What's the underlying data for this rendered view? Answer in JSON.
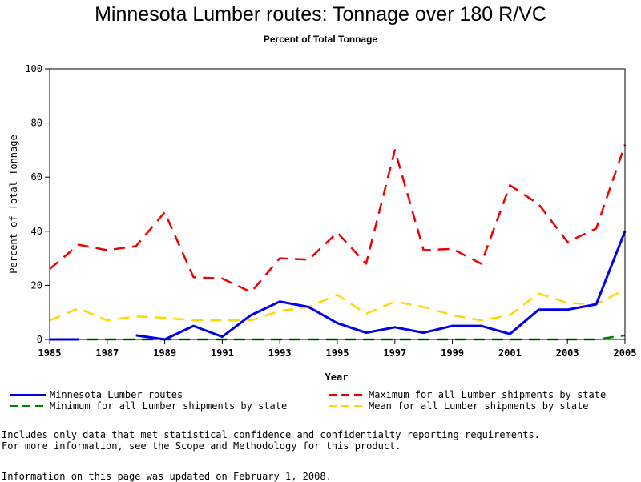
{
  "chart_data": {
    "type": "line",
    "title": "Minnesota Lumber routes: Tonnage over 180 R/VC",
    "subtitle": "Percent of Total Tonnage",
    "xlabel": "Year",
    "ylabel": "Percent of Total Tonnage",
    "xlim": [
      1985,
      2005
    ],
    "ylim": [
      0,
      100
    ],
    "x_ticks": [
      1985,
      1987,
      1989,
      1991,
      1993,
      1995,
      1997,
      1999,
      2001,
      2003,
      2005
    ],
    "y_ticks": [
      0,
      20,
      40,
      60,
      80,
      100
    ],
    "grid": false,
    "x": [
      1985,
      1986,
      1987,
      1988,
      1989,
      1990,
      1991,
      1992,
      1993,
      1994,
      1995,
      1996,
      1997,
      1998,
      1999,
      2000,
      2001,
      2002,
      2003,
      2004,
      2005
    ],
    "series": [
      {
        "name": "Minnesota Lumber routes",
        "color": "#0000ee",
        "style": "solid",
        "values": [
          0,
          0,
          null,
          1.5,
          0,
          5,
          1,
          9,
          14,
          12,
          6,
          2.5,
          4.5,
          2.5,
          5,
          5,
          2,
          11,
          11,
          13,
          40
        ]
      },
      {
        "name": "Maximum for all Lumber shipments by state",
        "color": "#ee0000",
        "style": "dashed",
        "values": [
          26,
          35,
          33,
          34.5,
          47,
          23,
          22.5,
          17.5,
          30,
          29.5,
          39.5,
          28,
          70,
          33,
          33.5,
          28,
          57,
          50,
          36,
          41,
          72
        ]
      },
      {
        "name": "Minimum for all Lumber shipments by state",
        "color": "#008000",
        "style": "dashed",
        "values": [
          0,
          0,
          0,
          0,
          0,
          0,
          0,
          0,
          0,
          0,
          0,
          0,
          0,
          0,
          0,
          0,
          0,
          0,
          0,
          0,
          1.5
        ]
      },
      {
        "name": "Mean for all Lumber shipments by state",
        "color": "#ffd700",
        "style": "dashed",
        "values": [
          7,
          11.5,
          7,
          8.5,
          8,
          7,
          7,
          7,
          10.5,
          12,
          16.5,
          9.5,
          14,
          12,
          9,
          7,
          9,
          17,
          13.5,
          13,
          18.5
        ]
      }
    ]
  },
  "legend": [
    {
      "label": "Minnesota Lumber routes",
      "color": "#0000ee",
      "style": "solid"
    },
    {
      "label": "Maximum for all Lumber shipments by state",
      "color": "#ee0000",
      "style": "dashed"
    },
    {
      "label": "Minimum for all Lumber shipments by state",
      "color": "#008000",
      "style": "dashed"
    },
    {
      "label": "Mean for all Lumber shipments by state",
      "color": "#ffd700",
      "style": "dashed"
    }
  ],
  "notes": {
    "line1": "Includes only data that met statistical confidence and confidentialty reporting requirements.",
    "line2": "For more information, see the Scope and Methodology for this product."
  },
  "updated": "Information on this page was updated on February 1, 2008."
}
